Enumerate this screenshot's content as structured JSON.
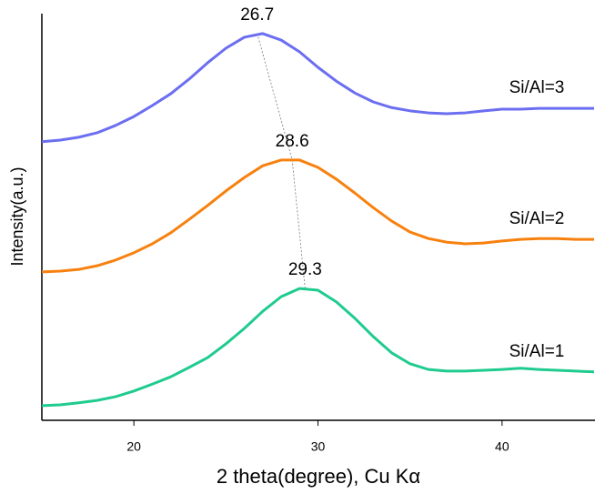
{
  "chart_data": {
    "type": "line",
    "x_label": "2 theta(degree), Cu Kα",
    "y_label": "Intensity(a.u.)",
    "x": [
      15,
      16,
      17,
      18,
      19,
      20,
      21,
      22,
      23,
      24,
      25,
      26,
      27,
      28,
      29,
      30,
      31,
      32,
      33,
      34,
      35,
      36,
      37,
      38,
      39,
      40,
      41,
      42,
      43,
      44,
      45
    ],
    "series": [
      {
        "name": "Si/Al=3",
        "color": "#6b6ef0",
        "values": [
          68.5,
          68.9,
          69.6,
          70.7,
          72.5,
          74.7,
          77.4,
          80.3,
          83.9,
          87.9,
          91.5,
          94.2,
          95.1,
          93.5,
          90.6,
          86.8,
          83.4,
          80.5,
          78.3,
          76.9,
          76.1,
          75.6,
          75.4,
          75.6,
          76.1,
          76.5,
          76.5,
          76.7,
          76.7,
          76.7,
          76.7
        ]
      },
      {
        "name": "Si/Al=2",
        "color": "#f7810f",
        "values": [
          36.5,
          36.7,
          37.1,
          38.0,
          39.4,
          41.2,
          43.4,
          46.1,
          49.4,
          52.8,
          56.4,
          59.7,
          62.6,
          64.0,
          64.0,
          62.2,
          59.3,
          55.9,
          52.3,
          49.0,
          46.3,
          44.7,
          43.8,
          43.4,
          43.6,
          44.1,
          44.5,
          44.7,
          44.7,
          44.5,
          44.5
        ]
      },
      {
        "name": "Si/Al=1",
        "color": "#1fcb8e",
        "values": [
          3.6,
          3.8,
          4.3,
          4.9,
          5.8,
          7.2,
          8.9,
          10.7,
          13.0,
          15.4,
          18.8,
          22.6,
          26.8,
          30.4,
          32.4,
          32.0,
          29.1,
          25.1,
          20.6,
          16.6,
          13.9,
          12.5,
          12.1,
          12.1,
          12.3,
          12.5,
          12.8,
          12.5,
          12.3,
          12.1,
          11.9
        ]
      }
    ],
    "annotations": [
      {
        "label": "26.7",
        "x": 26.7,
        "y": 95.1
      },
      {
        "label": "28.6",
        "x": 28.6,
        "y": 64.0
      },
      {
        "label": "29.3",
        "x": 29.3,
        "y": 32.4
      }
    ],
    "xlim": [
      15,
      45
    ],
    "ylim": [
      0,
      100
    ],
    "xticks": [
      20,
      30,
      40
    ]
  }
}
